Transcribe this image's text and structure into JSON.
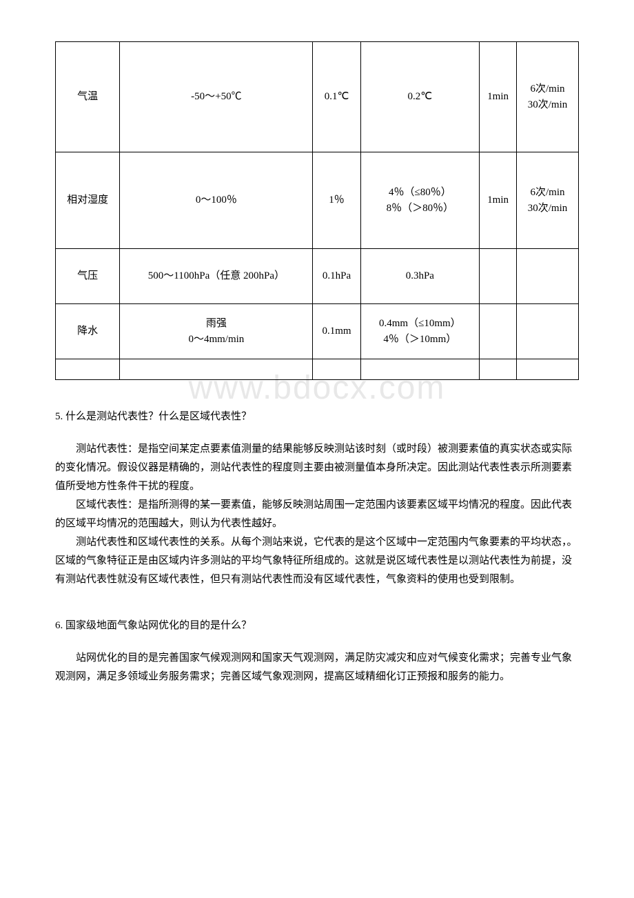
{
  "watermark": "www.bdocx.com",
  "table": {
    "rows": [
      {
        "c0": "气温",
        "c1": "-50～+50℃",
        "c2": "0.1℃",
        "c3": "0.2℃",
        "c4": "1min",
        "c5": "6次/min\n30次/min"
      },
      {
        "c0": "相对湿度",
        "c1": "0～100％",
        "c2": "1％",
        "c3": "4％（≤80％）\n8％（＞80％）",
        "c4": "1min",
        "c5": "6次/min\n30次/min"
      },
      {
        "c0": "气压",
        "c1": "500～1100hPa（任意 200hPa）",
        "c2": "0.1hPa",
        "c3": "0.3hPa",
        "c4": "",
        "c5": ""
      },
      {
        "c0": "降水",
        "c1": "雨强\n0～4mm/min",
        "c2": "0.1mm",
        "c3": "0.4mm（≤10mm）\n4％（＞10mm）",
        "c4": "",
        "c5": ""
      }
    ]
  },
  "q5": {
    "heading": "5. 什么是测站代表性？什么是区域代表性？",
    "p1": "测站代表性：是指空间某定点要素值测量的结果能够反映测站该时刻（或时段）被测要素值的真实状态或实际的变化情况。假设仪器是精确的，测站代表性的程度则主要由被测量值本身所决定。因此测站代表性表示所测要素值所受地方性条件干扰的程度。",
    "p2": "区域代表性：是指所测得的某一要素值，能够反映测站周围一定范围内该要素区域平均情况的程度。因此代表的区域平均情况的范围越大，则认为代表性越好。",
    "p3": "测站代表性和区域代表性的关系。从每个测站来说，它代表的是这个区域中一定范围内气象要素的平均状态，。区域的气象特征正是由区域内许多测站的平均气象特征所组成的。这就是说区域代表性是以测站代表性为前提，没有测站代表性就没有区域代表性，但只有测站代表性而没有区域代表性，气象资料的使用也受到限制。"
  },
  "q6": {
    "heading": "6. 国家级地面气象站网优化的目的是什么？",
    "p1": "站网优化的目的是完善国家气候观测网和国家天气观测网，满足防灾减灾和应对气候变化需求；完善专业气象观测网，满足多领域业务服务需求；完善区域气象观测网，提高区域精细化订正预报和服务的能力。"
  }
}
